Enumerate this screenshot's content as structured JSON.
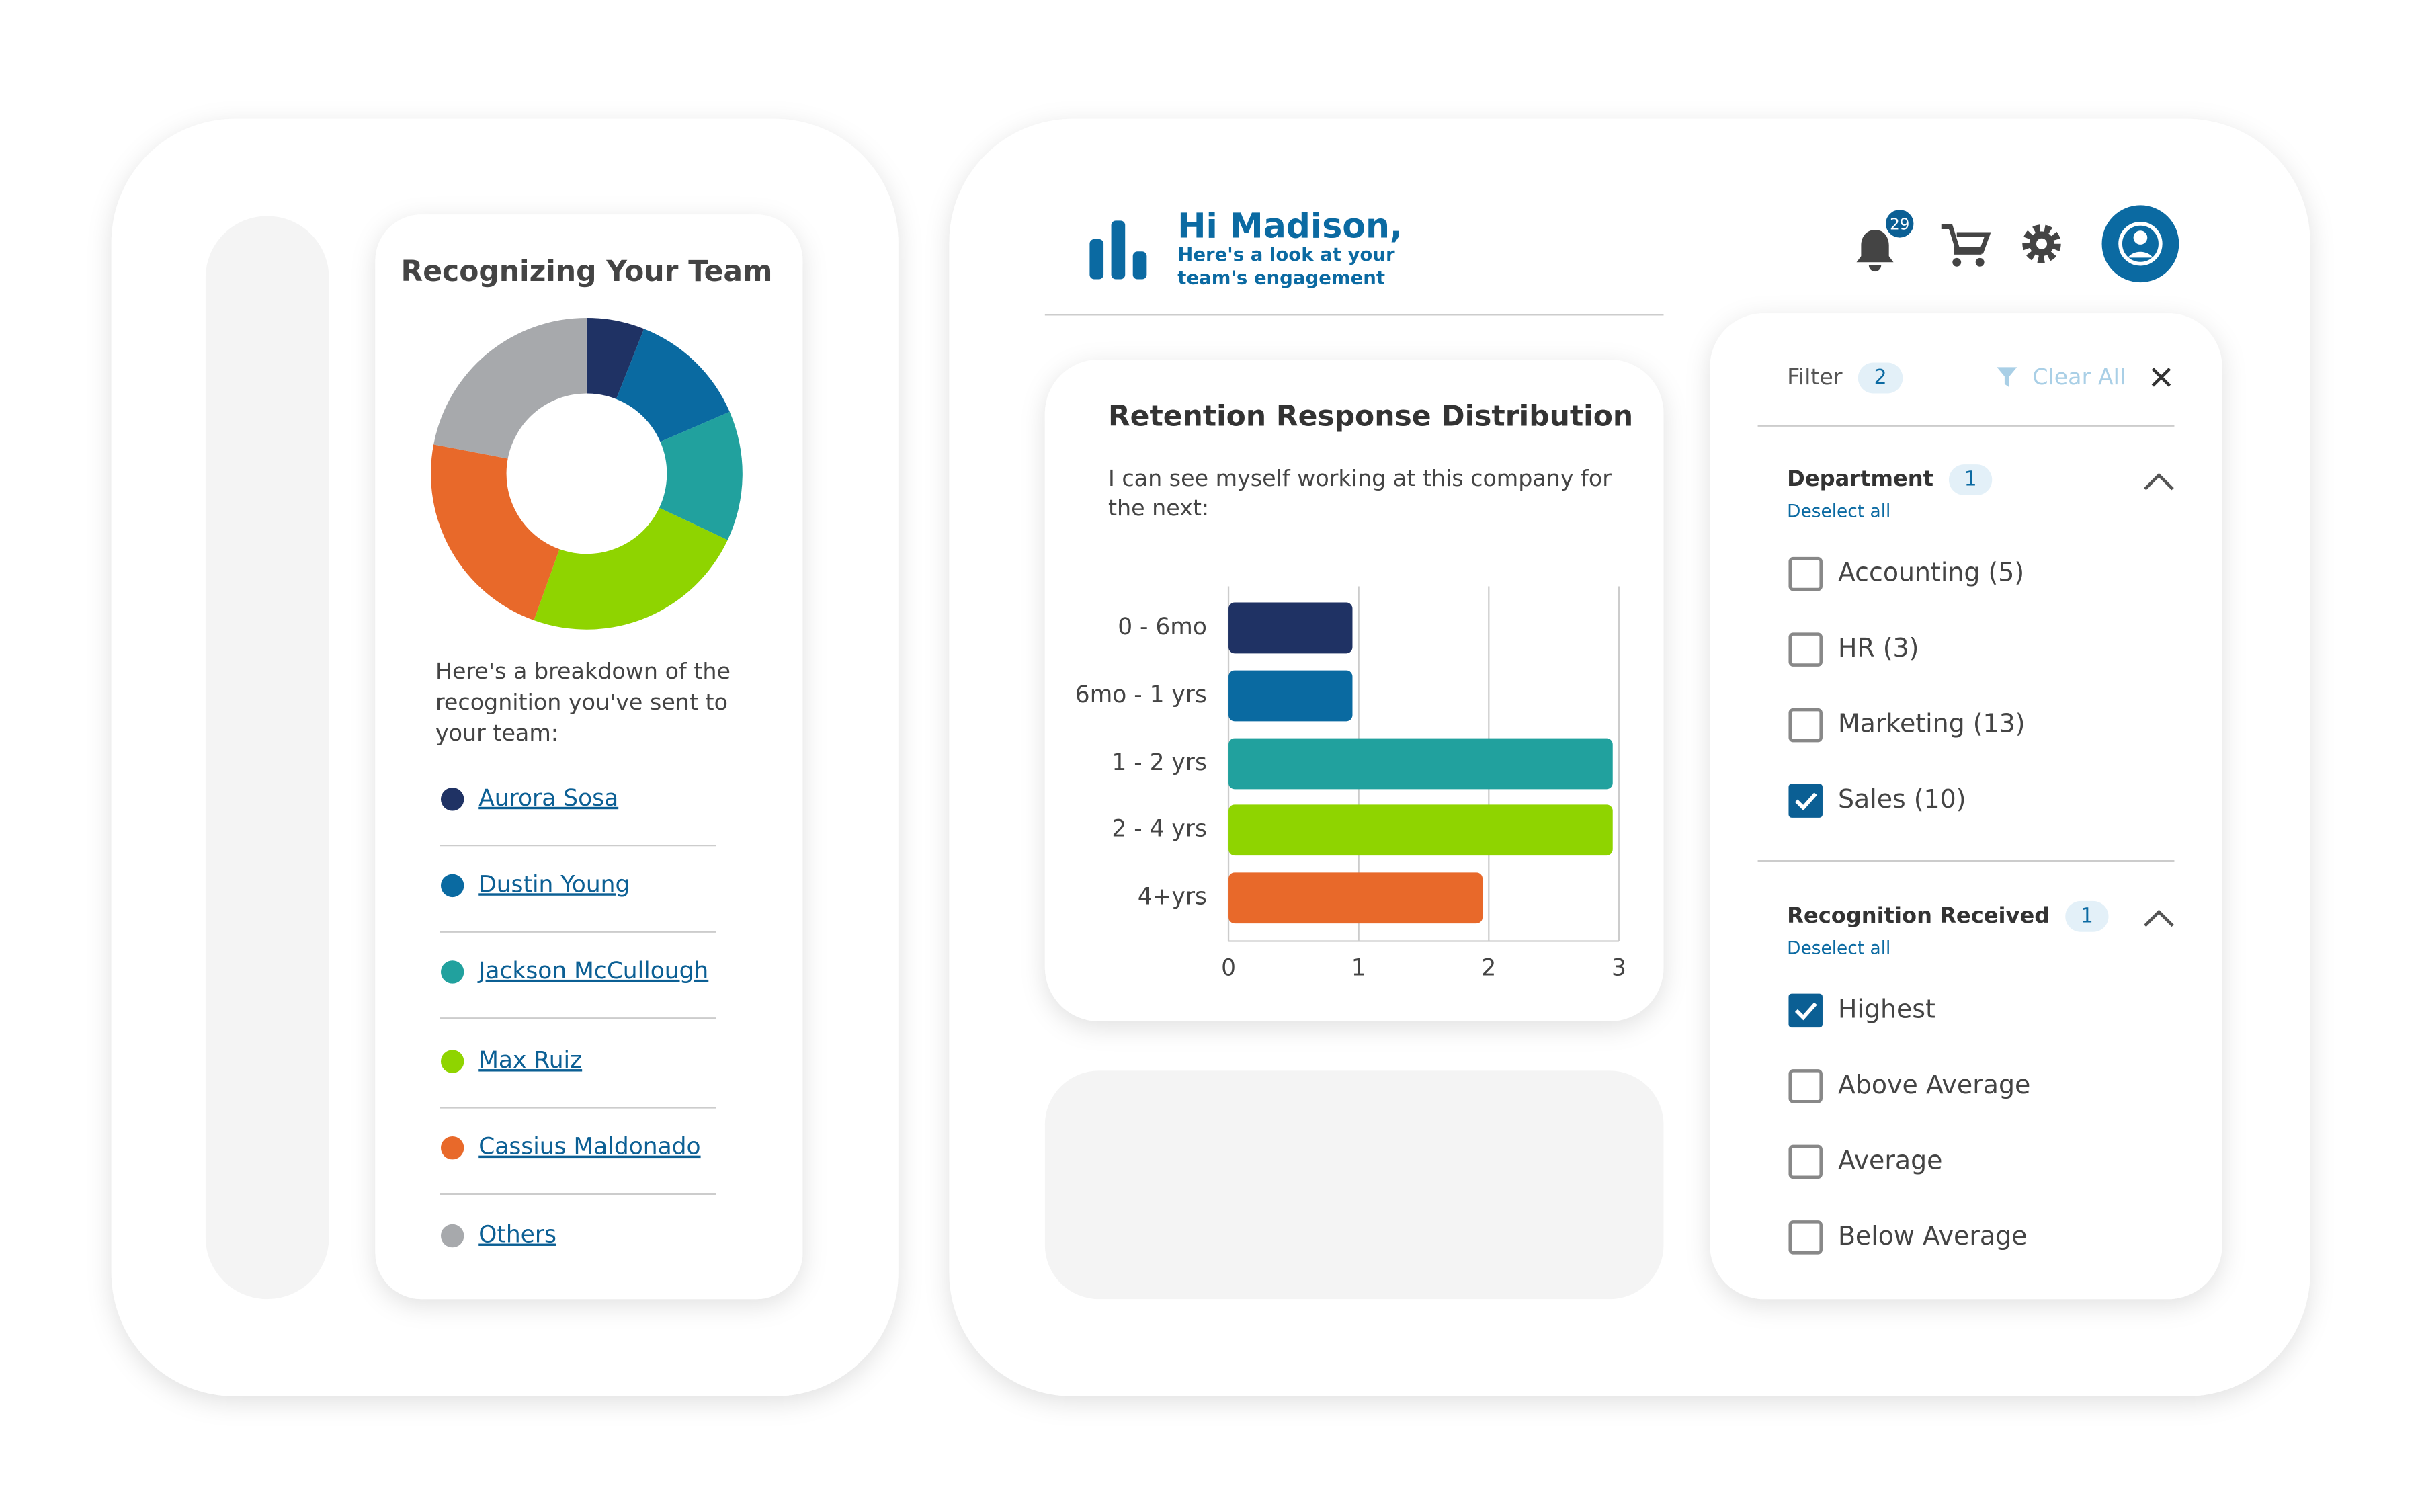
{
  "recognition_card": {
    "title": "Recognizing Your Team",
    "chart": {
      "type": "pie",
      "categories": [
        "Aurora Sosa",
        "Dustin Young",
        "Jackson McCullough",
        "Max Ruiz",
        "Cassius Maldonado",
        "Others"
      ],
      "values": [
        6,
        12.5,
        13.5,
        23.5,
        22.5,
        22
      ],
      "colors": [
        "#1f3264",
        "#0a6aa1",
        "#21a19e",
        "#8fd400",
        "#e8692a",
        "#a7a9ac"
      ]
    },
    "description": "Here's a breakdown of the recognition you've sent to your team:"
  },
  "header": {
    "greeting": "Hi Madison,",
    "subtitle": "Here's a look at your team's engagement",
    "notification_count": 29
  },
  "retention_card": {
    "chart": {
      "type": "bar",
      "title": "Retention Response Distribution",
      "subtitle": "I can see myself working at this company for the next:",
      "categories": [
        "0 - 6mo",
        "6mo - 1 yrs",
        "1 - 2 yrs",
        "2 - 4 yrs",
        "4+yrs"
      ],
      "values": [
        1,
        1,
        3,
        3,
        2
      ],
      "colors": [
        "#1f3264",
        "#0a6aa1",
        "#21a19e",
        "#8fd400",
        "#e8692a"
      ],
      "xlim": [
        0,
        3
      ],
      "xticks": [
        0,
        1,
        2,
        3
      ],
      "grid": true
    }
  },
  "filter": {
    "title": "Filter",
    "count": 2,
    "clear": "Clear All",
    "sections": [
      {
        "title": "Department",
        "count": 1,
        "deselect": "Deselect all",
        "options": [
          {
            "label": "Accounting (5)",
            "checked": false
          },
          {
            "label": "HR (3)",
            "checked": false
          },
          {
            "label": "Marketing (13)",
            "checked": false
          },
          {
            "label": "Sales (10)",
            "checked": true
          }
        ]
      },
      {
        "title": "Recognition Received",
        "count": 1,
        "deselect": "Deselect all",
        "options": [
          {
            "label": "Highest",
            "checked": true
          },
          {
            "label": "Above Average",
            "checked": false
          },
          {
            "label": "Average",
            "checked": false
          },
          {
            "label": "Below Average",
            "checked": false
          }
        ]
      }
    ]
  }
}
